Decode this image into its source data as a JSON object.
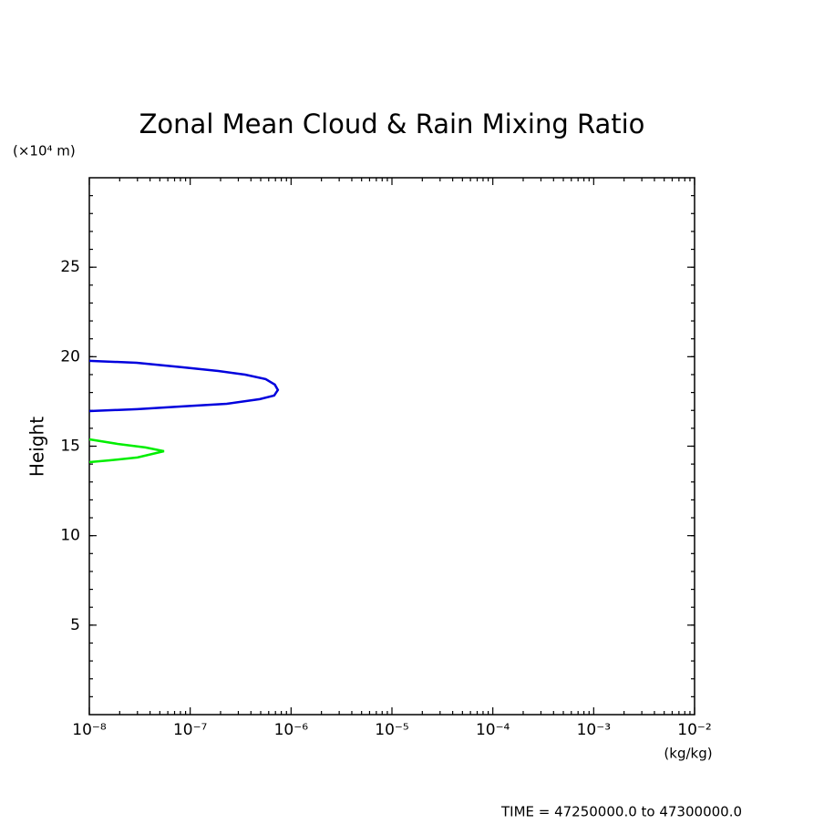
{
  "chart_data": {
    "type": "line",
    "title": "Zonal Mean Cloud & Rain Mixing Ratio",
    "ylabel": "Height",
    "yunit": "(×10⁴ m)",
    "xunit": "(kg/kg)",
    "footer": "TIME = 47250000.0 to 47300000.0",
    "xscale": "log",
    "xlim": [
      1e-08,
      0.01
    ],
    "ylim": [
      0,
      30
    ],
    "xticks": [
      {
        "value": 1e-08,
        "label": "10⁻⁸"
      },
      {
        "value": 1e-07,
        "label": "10⁻⁷"
      },
      {
        "value": 1e-06,
        "label": "10⁻⁶"
      },
      {
        "value": 1e-05,
        "label": "10⁻⁵"
      },
      {
        "value": 0.0001,
        "label": "10⁻⁴"
      },
      {
        "value": 0.001,
        "label": "10⁻³"
      },
      {
        "value": 0.01,
        "label": "10⁻²"
      }
    ],
    "yticks": [
      5,
      10,
      15,
      20,
      25
    ],
    "series": [
      {
        "color": "#0000dd",
        "x": [
          1e-08,
          2.95e-08,
          8.3e-08,
          1.9e-07,
          3.5e-07,
          5.6e-07,
          6.9e-07,
          7.4e-07,
          6.8e-07,
          4.9e-07,
          2.3e-07,
          8.3e-08,
          3e-08,
          1e-08
        ],
        "y": [
          19.77,
          19.66,
          19.41,
          19.2,
          19.0,
          18.75,
          18.44,
          18.14,
          17.83,
          17.63,
          17.37,
          17.22,
          17.07,
          16.96
        ]
      },
      {
        "color": "#00ee00",
        "x": [
          1e-08,
          1.9e-08,
          3.6e-08,
          5.5e-08,
          3e-08,
          1.6e-08,
          1e-08
        ],
        "y": [
          15.38,
          15.13,
          14.93,
          14.72,
          14.37,
          14.21,
          14.11
        ]
      }
    ]
  }
}
